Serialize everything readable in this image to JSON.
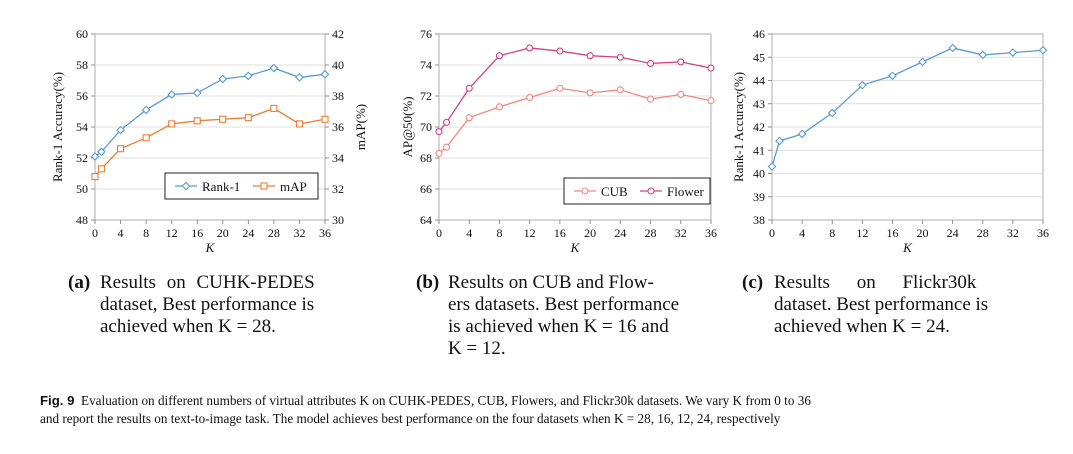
{
  "chart_data": [
    {
      "type": "line",
      "x": [
        0,
        1,
        4,
        8,
        12,
        16,
        20,
        24,
        28,
        32,
        36
      ],
      "xticks": [
        0,
        4,
        8,
        12,
        16,
        20,
        24,
        28,
        32,
        36
      ],
      "xlabel": "K",
      "ylabel": "Rank-1 Accuracy(%)",
      "ylim": [
        48,
        60
      ],
      "yticks": [
        48,
        50,
        52,
        54,
        56,
        58,
        60
      ],
      "ylabel_right": "mAP(%)",
      "ylim_right": [
        30,
        42
      ],
      "yticks_right": [
        30,
        32,
        34,
        36,
        38,
        40,
        42
      ],
      "series": [
        {
          "name": "Rank-1",
          "axis": "left",
          "color": "#5b9bd5",
          "marker": "diamond",
          "values": [
            52.1,
            52.4,
            53.8,
            55.1,
            56.1,
            56.2,
            57.1,
            57.3,
            57.8,
            57.2,
            57.4
          ]
        },
        {
          "name": "mAP",
          "axis": "right",
          "color": "#ed7d31",
          "marker": "square",
          "values": [
            32.8,
            33.3,
            34.6,
            35.3,
            36.2,
            36.4,
            36.5,
            36.6,
            37.2,
            36.2,
            36.5
          ]
        }
      ],
      "legend": "bottom-right",
      "grid": "horizontal"
    },
    {
      "type": "line",
      "x": [
        0,
        1,
        4,
        8,
        12,
        16,
        20,
        24,
        28,
        32,
        36
      ],
      "xticks": [
        0,
        4,
        8,
        12,
        16,
        20,
        24,
        28,
        32,
        36
      ],
      "xlabel": "K",
      "ylabel": "AP@50(%)",
      "ylim": [
        64,
        76
      ],
      "yticks": [
        64,
        66,
        68,
        70,
        72,
        74,
        76
      ],
      "series": [
        {
          "name": "CUB",
          "color": "#f4877f",
          "marker": "circle",
          "values": [
            68.3,
            68.7,
            70.6,
            71.3,
            71.9,
            72.5,
            72.2,
            72.4,
            71.8,
            72.1,
            71.7
          ]
        },
        {
          "name": "Flower",
          "color": "#d6417f",
          "marker": "circle",
          "values": [
            69.7,
            70.3,
            72.5,
            74.6,
            75.1,
            74.9,
            74.6,
            74.5,
            74.1,
            74.2,
            73.8
          ]
        }
      ],
      "legend": "bottom-right",
      "grid": "horizontal"
    },
    {
      "type": "line",
      "x": [
        0,
        1,
        4,
        8,
        12,
        16,
        20,
        24,
        28,
        32,
        36
      ],
      "xticks": [
        0,
        4,
        8,
        12,
        16,
        20,
        24,
        28,
        32,
        36
      ],
      "xlabel": "K",
      "ylabel": "Rank-1 Accuracy(%)",
      "ylim": [
        38,
        46
      ],
      "yticks": [
        38,
        39,
        40,
        41,
        42,
        43,
        44,
        45,
        46
      ],
      "series": [
        {
          "name": "",
          "color": "#5b9bd5",
          "marker": "diamond",
          "values": [
            40.3,
            41.4,
            41.7,
            42.6,
            43.8,
            44.2,
            44.8,
            45.4,
            45.1,
            45.2,
            45.3
          ]
        }
      ],
      "grid": "horizontal"
    }
  ],
  "captions": [
    {
      "label": "(a)",
      "lines": [
        "Results on CUHK-PEDES",
        "dataset, Best performance is",
        "achieved when K = 28."
      ]
    },
    {
      "label": "(b)",
      "lines": [
        "Results on CUB and Flow-",
        "ers datasets. Best performance",
        "is achieved when K = 16 and",
        "K = 12."
      ]
    },
    {
      "label": "(c)",
      "lines": [
        "Results on Flickr30k",
        "dataset. Best performance is",
        "achieved when K = 24."
      ]
    }
  ],
  "figure_caption": {
    "label": "Fig. 9",
    "text_line1": "Evaluation on different numbers of virtual attributes K on CUHK-PEDES, CUB, Flowers, and Flickr30k datasets. We vary K from 0 to 36",
    "text_line2": "and report the results on text-to-image task. The model achieves best performance on the four datasets when K = 28, 16, 12, 24, respectively"
  }
}
